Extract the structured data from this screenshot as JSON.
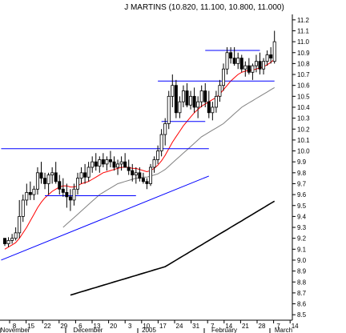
{
  "chart_data": {
    "type": "candlestick",
    "title": "J MARTINS (10.820, 11.100, 10.800, 11.000)",
    "ylim": [
      8.45,
      11.25
    ],
    "y_ticks": [
      "8.5",
      "8.6",
      "8.7",
      "8.8",
      "8.9",
      "9.0",
      "9.1",
      "9.2",
      "9.3",
      "9.4",
      "9.5",
      "9.6",
      "9.7",
      "9.8",
      "9.9",
      "10.0",
      "10.1",
      "10.2",
      "10.3",
      "10.4",
      "10.5",
      "10.6",
      "10.7",
      "10.8",
      "10.9",
      "11.0",
      "11.1",
      "11.2"
    ],
    "x_ticks": [
      "8",
      "15",
      "22",
      "29",
      "6",
      "13",
      "20",
      "3",
      "10",
      "17",
      "24",
      "31",
      "7",
      "14",
      "21",
      "28",
      "7",
      "14"
    ],
    "months": [
      "November",
      "December",
      "2005",
      "February",
      "March"
    ],
    "grid": false,
    "colors": {
      "up": "#ffffff",
      "down": "#000000",
      "wick": "#000000",
      "ma_short": "#ff0000",
      "ma_mid": "#808080",
      "ma_long": "#000000",
      "lines": "#0000ff"
    },
    "ohlc": [
      [
        9.2,
        9.2,
        9.13,
        9.15
      ],
      [
        9.15,
        9.21,
        9.12,
        9.18
      ],
      [
        9.18,
        9.24,
        9.15,
        9.2
      ],
      [
        9.2,
        9.3,
        9.18,
        9.25
      ],
      [
        9.25,
        9.55,
        9.2,
        9.4
      ],
      [
        9.4,
        9.6,
        9.35,
        9.55
      ],
      [
        9.55,
        9.7,
        9.5,
        9.62
      ],
      [
        9.62,
        9.72,
        9.55,
        9.6
      ],
      [
        9.6,
        9.68,
        9.55,
        9.65
      ],
      [
        9.65,
        9.85,
        9.6,
        9.8
      ],
      [
        9.8,
        9.9,
        9.7,
        9.75
      ],
      [
        9.75,
        9.8,
        9.65,
        9.7
      ],
      [
        9.7,
        9.8,
        9.6,
        9.78
      ],
      [
        9.78,
        9.85,
        9.7,
        9.8
      ],
      [
        9.8,
        9.9,
        9.7,
        9.72
      ],
      [
        9.72,
        9.78,
        9.6,
        9.65
      ],
      [
        9.65,
        9.75,
        9.58,
        9.62
      ],
      [
        9.62,
        9.7,
        9.48,
        9.58
      ],
      [
        9.58,
        9.65,
        9.45,
        9.55
      ],
      [
        9.55,
        9.7,
        9.5,
        9.65
      ],
      [
        9.65,
        9.8,
        9.6,
        9.75
      ],
      [
        9.75,
        9.85,
        9.7,
        9.8
      ],
      [
        9.8,
        9.88,
        9.7,
        9.76
      ],
      [
        9.76,
        9.9,
        9.72,
        9.85
      ],
      [
        9.85,
        9.95,
        9.8,
        9.9
      ],
      [
        9.9,
        9.98,
        9.82,
        9.86
      ],
      [
        9.86,
        9.95,
        9.8,
        9.92
      ],
      [
        9.92,
        9.98,
        9.85,
        9.88
      ],
      [
        9.88,
        9.95,
        9.82,
        9.92
      ],
      [
        9.92,
        10.0,
        9.85,
        9.9
      ],
      [
        9.9,
        9.95,
        9.82,
        9.85
      ],
      [
        9.85,
        9.92,
        9.78,
        9.88
      ],
      [
        9.88,
        9.95,
        9.82,
        9.9
      ],
      [
        9.9,
        9.98,
        9.85,
        9.85
      ],
      [
        9.85,
        9.92,
        9.78,
        9.82
      ],
      [
        9.82,
        9.88,
        9.72,
        9.78
      ],
      [
        9.78,
        9.85,
        9.7,
        9.8
      ],
      [
        9.8,
        9.85,
        9.72,
        9.75
      ],
      [
        9.75,
        9.8,
        9.7,
        9.72
      ],
      [
        9.72,
        9.75,
        9.65,
        9.7
      ],
      [
        9.7,
        9.88,
        9.68,
        9.85
      ],
      [
        9.85,
        9.95,
        9.8,
        9.92
      ],
      [
        9.92,
        10.05,
        9.88,
        10.0
      ],
      [
        10.0,
        10.2,
        9.95,
        10.15
      ],
      [
        10.15,
        10.3,
        10.05,
        10.25
      ],
      [
        10.25,
        10.55,
        10.2,
        10.5
      ],
      [
        10.5,
        10.7,
        10.4,
        10.6
      ],
      [
        10.6,
        10.65,
        10.3,
        10.35
      ],
      [
        10.35,
        10.5,
        10.3,
        10.45
      ],
      [
        10.45,
        10.6,
        10.4,
        10.55
      ],
      [
        10.55,
        10.62,
        10.4,
        10.42
      ],
      [
        10.42,
        10.55,
        10.38,
        10.5
      ],
      [
        10.5,
        10.58,
        10.35,
        10.4
      ],
      [
        10.4,
        10.5,
        10.3,
        10.45
      ],
      [
        10.45,
        10.6,
        10.4,
        10.55
      ],
      [
        10.55,
        10.62,
        10.4,
        10.45
      ],
      [
        10.45,
        10.55,
        10.3,
        10.35
      ],
      [
        10.35,
        10.45,
        10.28,
        10.4
      ],
      [
        10.4,
        10.55,
        10.35,
        10.5
      ],
      [
        10.5,
        10.65,
        10.45,
        10.6
      ],
      [
        10.6,
        10.8,
        10.55,
        10.75
      ],
      [
        10.75,
        10.95,
        10.7,
        10.9
      ],
      [
        10.9,
        10.95,
        10.8,
        10.85
      ],
      [
        10.85,
        10.95,
        10.78,
        10.8
      ],
      [
        10.8,
        10.9,
        10.75,
        10.85
      ],
      [
        10.85,
        10.88,
        10.72,
        10.75
      ],
      [
        10.75,
        10.82,
        10.68,
        10.78
      ],
      [
        10.78,
        10.85,
        10.7,
        10.72
      ],
      [
        10.72,
        10.8,
        10.65,
        10.78
      ],
      [
        10.78,
        10.88,
        10.72,
        10.82
      ],
      [
        10.82,
        10.9,
        10.7,
        10.75
      ],
      [
        10.75,
        10.85,
        10.7,
        10.82
      ],
      [
        10.82,
        10.92,
        10.78,
        10.88
      ],
      [
        10.88,
        10.95,
        10.8,
        10.85
      ],
      [
        10.82,
        11.1,
        10.8,
        11.0
      ]
    ],
    "ma_short": [
      9.1,
      9.12,
      9.14,
      9.16,
      9.2,
      9.25,
      9.3,
      9.36,
      9.42,
      9.48,
      9.53,
      9.57,
      9.6,
      9.63,
      9.65,
      9.67,
      9.68,
      9.68,
      9.67,
      9.67,
      9.68,
      9.7,
      9.71,
      9.72,
      9.74,
      9.76,
      9.78,
      9.8,
      9.81,
      9.82,
      9.83,
      9.84,
      9.85,
      9.85,
      9.85,
      9.84,
      9.84,
      9.83,
      9.82,
      9.81,
      9.82,
      9.84,
      9.87,
      9.91,
      9.96,
      10.02,
      10.08,
      10.13,
      10.18,
      10.23,
      10.27,
      10.31,
      10.35,
      10.38,
      10.41,
      10.43,
      10.45,
      10.47,
      10.49,
      10.52,
      10.56,
      10.6,
      10.64,
      10.67,
      10.7,
      10.72,
      10.73,
      10.74,
      10.74,
      10.75,
      10.76,
      10.77,
      10.79,
      10.81,
      10.84
    ],
    "ma_mid": [
      null,
      null,
      null,
      null,
      null,
      null,
      null,
      null,
      null,
      null,
      null,
      null,
      null,
      null,
      null,
      null,
      9.3,
      9.33,
      9.36,
      9.39,
      9.42,
      9.45,
      9.48,
      9.51,
      9.54,
      9.57,
      9.6,
      9.62,
      9.64,
      9.66,
      9.68,
      9.7,
      9.71,
      9.72,
      9.73,
      9.74,
      9.75,
      9.75,
      9.76,
      9.76,
      9.77,
      9.78,
      9.79,
      9.81,
      9.83,
      9.86,
      9.89,
      9.92,
      9.95,
      9.98,
      10.01,
      10.04,
      10.07,
      10.1,
      10.13,
      10.15,
      10.17,
      10.19,
      10.21,
      10.23,
      10.25,
      10.28,
      10.31,
      10.34,
      10.37,
      10.4,
      10.42,
      10.44,
      10.46,
      10.48,
      10.5,
      10.52,
      10.54,
      10.56,
      10.58
    ],
    "ma_long": [
      null,
      null,
      null,
      null,
      null,
      null,
      null,
      null,
      null,
      null,
      null,
      null,
      null,
      null,
      null,
      null,
      null,
      null,
      8.68,
      8.69,
      8.7,
      8.71,
      8.72,
      8.73,
      8.74,
      8.75,
      8.76,
      8.77,
      8.78,
      8.79,
      8.8,
      8.81,
      8.82,
      8.83,
      8.84,
      8.85,
      8.86,
      8.87,
      8.88,
      8.89,
      8.9,
      8.91,
      8.92,
      8.93,
      8.94,
      8.96,
      8.98,
      9.0,
      9.02,
      9.04,
      9.06,
      9.08,
      9.1,
      9.12,
      9.14,
      9.16,
      9.18,
      9.2,
      9.22,
      9.24,
      9.26,
      9.28,
      9.3,
      9.32,
      9.34,
      9.36,
      9.38,
      9.4,
      9.42,
      9.44,
      9.46,
      9.48,
      9.5,
      9.52,
      9.54
    ],
    "lines": [
      {
        "x1": -1,
        "y1": 10.02,
        "x2": 56,
        "y2": 10.02
      },
      {
        "x1": 11,
        "y1": 9.59,
        "x2": 36,
        "y2": 9.59
      },
      {
        "x1": 42,
        "y1": 10.64,
        "x2": 74,
        "y2": 10.64
      },
      {
        "x1": 43,
        "y1": 10.27,
        "x2": 55,
        "y2": 10.27
      },
      {
        "x1": 55,
        "y1": 10.92,
        "x2": 70,
        "y2": 10.92
      },
      {
        "x1": -1,
        "y1": 9.0,
        "x2": 56,
        "y2": 9.77
      }
    ]
  }
}
